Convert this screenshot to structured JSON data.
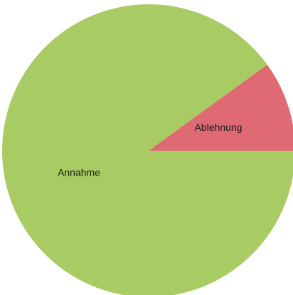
{
  "chart_data": {
    "type": "pie",
    "categories": [
      "Ablehnung",
      "Annahme"
    ],
    "values": [
      10,
      90
    ],
    "colors": [
      "#e06a73",
      "#a8cb63"
    ],
    "start_angle": 0,
    "direction": "counterclockwise"
  }
}
